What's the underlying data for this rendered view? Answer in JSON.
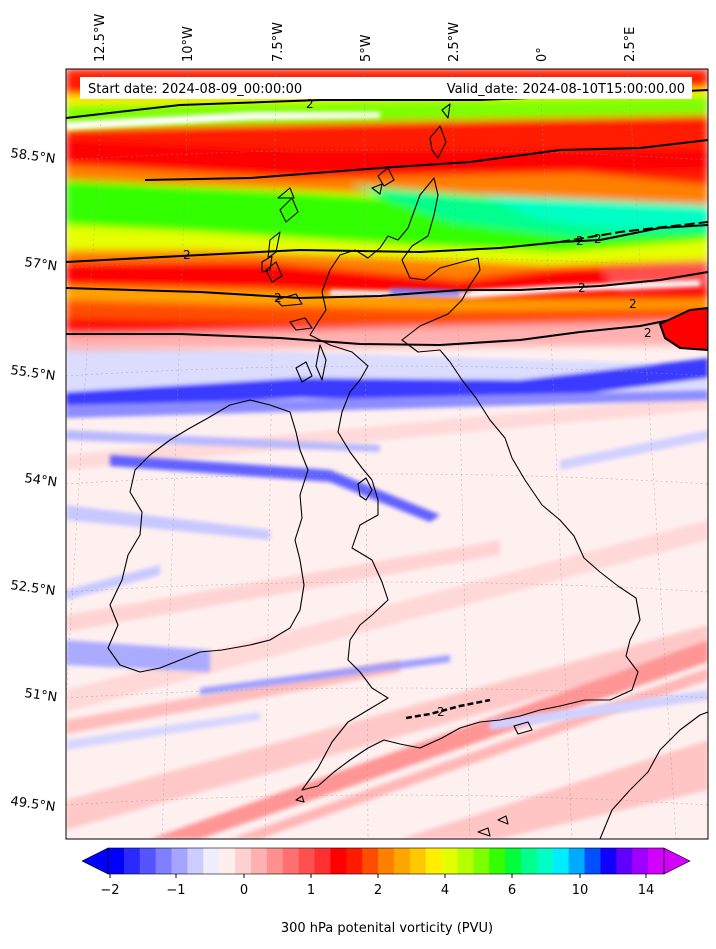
{
  "map": {
    "lon_labels": [
      "12.5°W",
      "10°W",
      "7.5°W",
      "5°W",
      "2.5°W",
      "0°",
      "2.5°E"
    ],
    "lat_labels": [
      "58.5°N",
      "57°N",
      "55.5°N",
      "54°N",
      "52.5°N",
      "51°N",
      "49.5°N"
    ],
    "start_date": "Start date: 2024-08-09_00:00:00",
    "valid_date": "Valid_date: 2024-08-10T15:00:00.00",
    "contour_level_label": "2",
    "field": "300 hPa potential vorticity",
    "region": "British Isles"
  },
  "colorbar": {
    "title": "300 hPa potenital vorticity (PVU)",
    "tick_labels": [
      "−2",
      "−1",
      "0",
      "1",
      "2",
      "4",
      "6",
      "10",
      "14"
    ],
    "colors": [
      "#0000ff",
      "#2a2aff",
      "#5555ff",
      "#7f7fff",
      "#a5a5ff",
      "#ccccff",
      "#eeeeff",
      "#ffeeee",
      "#ffd0d0",
      "#ffb0b0",
      "#ff9090",
      "#ff7070",
      "#ff5050",
      "#ff3030",
      "#ff0000",
      "#ff1a00",
      "#ff4d00",
      "#ff8000",
      "#ffa500",
      "#ffc800",
      "#ffee00",
      "#e5ff00",
      "#b4ff00",
      "#7dff00",
      "#33ff00",
      "#00ff3a",
      "#00ff8c",
      "#00ffc4",
      "#00ecff",
      "#00aaff",
      "#0050ff",
      "#1200ff",
      "#6000ff",
      "#a000ff",
      "#d400ff"
    ]
  }
}
